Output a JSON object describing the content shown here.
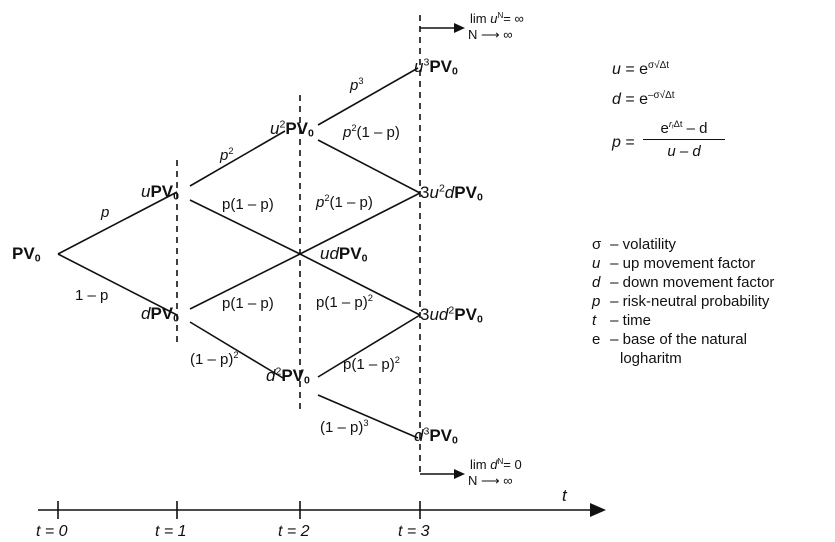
{
  "nodes": {
    "pv0": "PV",
    "pv0_sub": "0",
    "u": "u",
    "d": "d",
    "ud": "ud",
    "u2": "u",
    "u2_exp": "2",
    "d2": "d",
    "d2_exp": "2",
    "u3": "u",
    "u3_exp": "3",
    "d3": "d",
    "d3_exp": "3",
    "three_u2d_coef": "3",
    "three_u2d_u": "u",
    "three_u2d_exp": "2",
    "three_u2d_d": "d",
    "three_ud2_coef": "3",
    "three_ud2_ud": "ud",
    "three_ud2_exp": "2"
  },
  "edge_labels": {
    "p": "p",
    "one_minus_p": "1 – p",
    "p2": "p",
    "p2_exp": "2",
    "p_one_minus_p": "p(1 – p)",
    "one_minus_p_sq": "(1 – p)",
    "one_minus_p_sq_exp": "2",
    "p3": "p",
    "p3_exp": "3",
    "p2_one_minus_p_a": "p",
    "p2_one_minus_p_b": "(1 – p)",
    "p2_one_minus_p_exp": "2",
    "p_one_minus_p_sq_a": "p(1 – p)",
    "p_one_minus_p_sq_exp": "2",
    "one_minus_p_cube": "(1 – p)",
    "one_minus_p_cube_exp": "3"
  },
  "limits": {
    "up_lim": "lim",
    "up_var": "u",
    "up_sup": "N",
    "up_eq": "= ∞",
    "up_under": "N ⟶ ∞",
    "down_lim": "lim",
    "down_var": "d",
    "down_sup": "N",
    "down_eq": "= 0",
    "down_under": "N ⟶ ∞"
  },
  "formulas": {
    "u_lhs": "u",
    "u_rhs": "= e",
    "u_exp": "σ√Δt",
    "d_lhs": "d",
    "d_rhs": "= e",
    "d_exp": "–σ√Δt",
    "p_lhs": "p",
    "p_eq": "=",
    "p_num_base": "e",
    "p_num_exp": "r",
    "p_num_exp_sub": "f",
    "p_num_exp_tail": "Δt",
    "p_num_rest": " – d",
    "p_den": "u – d"
  },
  "legend": [
    {
      "symbol": "σ",
      "italic": false,
      "text": "– volatility"
    },
    {
      "symbol": "u",
      "italic": true,
      "text": "– up movement factor"
    },
    {
      "symbol": "d",
      "italic": true,
      "text": "– down movement factor"
    },
    {
      "symbol": "p",
      "italic": true,
      "text": "– risk-neutral probability"
    },
    {
      "symbol": "t",
      "italic": true,
      "text": "– time"
    },
    {
      "symbol": "e",
      "italic": false,
      "text": "– base of the natural"
    },
    {
      "symbol": "",
      "italic": false,
      "text": "logharitm"
    }
  ],
  "timeline": {
    "axis_label": "t",
    "ticks": [
      "t = 0",
      "t = 1",
      "t = 2",
      "t = 3"
    ]
  },
  "colors": {
    "ink": "#111111",
    "background": "#ffffff"
  }
}
